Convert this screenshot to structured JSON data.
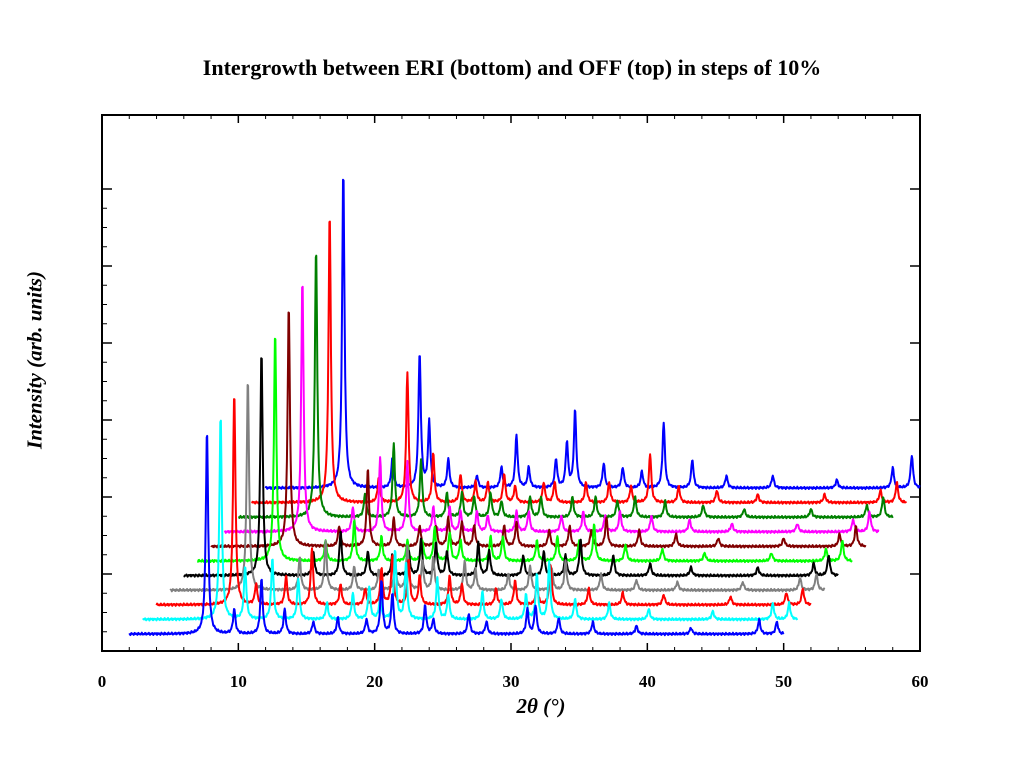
{
  "chart_data": {
    "type": "line",
    "title": "Intergrowth between ERI (bottom) and OFF (top) in steps of 10%",
    "xlabel": "2θ (°)",
    "ylabel": "Intensity (arb. units)",
    "xlim": [
      0,
      60
    ],
    "x_ticks": [
      0,
      10,
      20,
      30,
      40,
      50,
      60
    ],
    "y_tick_labels_shown": false,
    "legend": "none",
    "grid": false,
    "x_offset_per_curve": 1.0,
    "x_range": [
      2,
      50
    ],
    "series": [
      {
        "color": "#0000ff",
        "peaks": [
          [
            7.7,
            100
          ],
          [
            9.7,
            12
          ],
          [
            11.7,
            27
          ],
          [
            13.4,
            12
          ],
          [
            15.5,
            6
          ],
          [
            17.3,
            8
          ],
          [
            19.4,
            7
          ],
          [
            20.5,
            26
          ],
          [
            21.3,
            20
          ],
          [
            23.7,
            14
          ],
          [
            24.3,
            7
          ],
          [
            26.9,
            10
          ],
          [
            28.2,
            6
          ],
          [
            31.2,
            12
          ],
          [
            31.8,
            14
          ],
          [
            33.5,
            8
          ],
          [
            36.0,
            6
          ],
          [
            39.2,
            4
          ],
          [
            43.2,
            3
          ],
          [
            48.2,
            7
          ],
          [
            49.5,
            6
          ]
        ]
      },
      {
        "color": "#00ffff",
        "peaks": [
          [
            8.7,
            100
          ],
          [
            10.5,
            26
          ],
          [
            12.5,
            30
          ],
          [
            14.4,
            20
          ],
          [
            16.5,
            8
          ],
          [
            18.4,
            13
          ],
          [
            19.6,
            16
          ],
          [
            20.4,
            10
          ],
          [
            21.5,
            34
          ],
          [
            22.3,
            28
          ],
          [
            24.6,
            20
          ],
          [
            25.4,
            12
          ],
          [
            27.9,
            14
          ],
          [
            29.3,
            10
          ],
          [
            31.1,
            12
          ],
          [
            31.9,
            22
          ],
          [
            32.8,
            28
          ],
          [
            34.7,
            10
          ],
          [
            37.2,
            8
          ],
          [
            40.1,
            5
          ],
          [
            44.8,
            4
          ],
          [
            49.2,
            8
          ],
          [
            50.4,
            8
          ]
        ]
      },
      {
        "color": "#ff0000",
        "peaks": [
          [
            9.7,
            104
          ],
          [
            11.3,
            10
          ],
          [
            13.5,
            14
          ],
          [
            15.4,
            28
          ],
          [
            17.5,
            10
          ],
          [
            19.3,
            8
          ],
          [
            20.5,
            18
          ],
          [
            21.3,
            24
          ],
          [
            22.5,
            22
          ],
          [
            23.3,
            14
          ],
          [
            25.5,
            14
          ],
          [
            26.4,
            10
          ],
          [
            28.9,
            8
          ],
          [
            30.3,
            12
          ],
          [
            31.9,
            10
          ],
          [
            32.9,
            20
          ],
          [
            35.7,
            8
          ],
          [
            38.2,
            6
          ],
          [
            41.2,
            5
          ],
          [
            46.1,
            4
          ],
          [
            50.2,
            6
          ],
          [
            51.4,
            8
          ]
        ]
      },
      {
        "color": "#808080",
        "peaks": [
          [
            10.7,
            104
          ],
          [
            14.5,
            16
          ],
          [
            16.4,
            24
          ],
          [
            18.5,
            12
          ],
          [
            20.3,
            10
          ],
          [
            21.5,
            14
          ],
          [
            22.4,
            22
          ],
          [
            23.5,
            14
          ],
          [
            24.3,
            16
          ],
          [
            26.6,
            14
          ],
          [
            27.4,
            10
          ],
          [
            29.8,
            8
          ],
          [
            31.4,
            12
          ],
          [
            33.0,
            10
          ],
          [
            34.0,
            14
          ],
          [
            36.6,
            8
          ],
          [
            39.2,
            5
          ],
          [
            42.2,
            4
          ],
          [
            47.0,
            4
          ],
          [
            51.2,
            6
          ],
          [
            52.4,
            8
          ]
        ]
      },
      {
        "color": "#000000",
        "peaks": [
          [
            11.7,
            110
          ],
          [
            15.5,
            12
          ],
          [
            17.5,
            22
          ],
          [
            19.5,
            12
          ],
          [
            21.3,
            10
          ],
          [
            22.5,
            12
          ],
          [
            23.4,
            18
          ],
          [
            24.5,
            16
          ],
          [
            25.3,
            12
          ],
          [
            27.6,
            16
          ],
          [
            28.4,
            12
          ],
          [
            30.9,
            10
          ],
          [
            32.4,
            12
          ],
          [
            34.0,
            10
          ],
          [
            35.1,
            18
          ],
          [
            37.5,
            10
          ],
          [
            40.2,
            6
          ],
          [
            43.2,
            4
          ],
          [
            48.1,
            4
          ],
          [
            52.2,
            6
          ],
          [
            53.3,
            10
          ]
        ]
      },
      {
        "color": "#00ff00",
        "peaks": [
          [
            12.7,
            112
          ],
          [
            16.4,
            10
          ],
          [
            18.5,
            20
          ],
          [
            20.5,
            12
          ],
          [
            22.4,
            10
          ],
          [
            23.5,
            10
          ],
          [
            24.4,
            16
          ],
          [
            25.5,
            14
          ],
          [
            26.3,
            10
          ],
          [
            28.5,
            12
          ],
          [
            29.4,
            12
          ],
          [
            31.9,
            10
          ],
          [
            33.4,
            12
          ],
          [
            35.0,
            10
          ],
          [
            36.1,
            18
          ],
          [
            38.4,
            8
          ],
          [
            41.1,
            6
          ],
          [
            44.2,
            4
          ],
          [
            49.1,
            4
          ],
          [
            53.1,
            6
          ],
          [
            54.3,
            10
          ]
        ]
      },
      {
        "color": "#800000",
        "peaks": [
          [
            13.7,
            118
          ],
          [
            17.4,
            10
          ],
          [
            19.5,
            38
          ],
          [
            21.4,
            14
          ],
          [
            23.3,
            10
          ],
          [
            24.5,
            10
          ],
          [
            25.4,
            14
          ],
          [
            26.4,
            12
          ],
          [
            27.3,
            10
          ],
          [
            29.5,
            10
          ],
          [
            30.4,
            12
          ],
          [
            32.8,
            8
          ],
          [
            34.3,
            10
          ],
          [
            35.9,
            8
          ],
          [
            37.0,
            14
          ],
          [
            39.4,
            8
          ],
          [
            42.1,
            6
          ],
          [
            45.2,
            4
          ],
          [
            50.0,
            4
          ],
          [
            54.1,
            6
          ],
          [
            55.3,
            10
          ]
        ]
      },
      {
        "color": "#ff00ff",
        "peaks": [
          [
            14.7,
            124
          ],
          [
            18.4,
            12
          ],
          [
            20.4,
            36
          ],
          [
            22.4,
            34
          ],
          [
            24.3,
            12
          ],
          [
            25.5,
            12
          ],
          [
            26.3,
            10
          ],
          [
            27.5,
            10
          ],
          [
            28.3,
            8
          ],
          [
            30.4,
            10
          ],
          [
            31.3,
            10
          ],
          [
            33.7,
            8
          ],
          [
            35.3,
            10
          ],
          [
            36.9,
            8
          ],
          [
            38.0,
            10
          ],
          [
            40.3,
            8
          ],
          [
            43.1,
            6
          ],
          [
            46.2,
            4
          ],
          [
            51.0,
            4
          ],
          [
            55.1,
            6
          ],
          [
            56.3,
            10
          ]
        ]
      },
      {
        "color": "#008000",
        "peaks": [
          [
            15.7,
            132
          ],
          [
            19.3,
            12
          ],
          [
            21.4,
            36
          ],
          [
            23.4,
            28
          ],
          [
            25.3,
            12
          ],
          [
            26.4,
            12
          ],
          [
            27.3,
            10
          ],
          [
            28.5,
            12
          ],
          [
            29.3,
            8
          ],
          [
            31.4,
            10
          ],
          [
            32.2,
            10
          ],
          [
            34.5,
            10
          ],
          [
            36.2,
            10
          ],
          [
            37.8,
            8
          ],
          [
            39.1,
            10
          ],
          [
            41.3,
            8
          ],
          [
            44.1,
            6
          ],
          [
            47.1,
            4
          ],
          [
            52.0,
            4
          ],
          [
            56.1,
            6
          ],
          [
            57.3,
            10
          ]
        ]
      },
      {
        "color": "#ff0000",
        "peaks": [
          [
            16.7,
            142
          ],
          [
            20.3,
            12
          ],
          [
            22.4,
            64
          ],
          [
            24.3,
            24
          ],
          [
            26.3,
            14
          ],
          [
            27.4,
            10
          ],
          [
            28.3,
            10
          ],
          [
            29.5,
            14
          ],
          [
            30.3,
            8
          ],
          [
            32.4,
            10
          ],
          [
            33.2,
            10
          ],
          [
            35.5,
            10
          ],
          [
            37.2,
            10
          ],
          [
            38.8,
            8
          ],
          [
            40.2,
            24
          ],
          [
            42.3,
            8
          ],
          [
            45.1,
            6
          ],
          [
            48.1,
            4
          ],
          [
            53.0,
            4
          ],
          [
            57.1,
            6
          ],
          [
            58.3,
            10
          ]
        ]
      },
      {
        "color": "#0000ff",
        "peaks": [
          [
            17.7,
            156
          ],
          [
            21.3,
            14
          ],
          [
            23.3,
            66
          ],
          [
            24.0,
            32
          ],
          [
            25.4,
            14
          ],
          [
            27.5,
            6
          ],
          [
            29.3,
            10
          ],
          [
            30.4,
            26
          ],
          [
            31.3,
            10
          ],
          [
            33.3,
            14
          ],
          [
            34.1,
            22
          ],
          [
            34.7,
            38
          ],
          [
            36.8,
            12
          ],
          [
            38.2,
            10
          ],
          [
            39.6,
            8
          ],
          [
            41.2,
            32
          ],
          [
            43.3,
            14
          ],
          [
            45.8,
            6
          ],
          [
            49.2,
            6
          ],
          [
            53.9,
            4
          ],
          [
            58.0,
            10
          ],
          [
            59.4,
            16
          ]
        ]
      }
    ]
  }
}
